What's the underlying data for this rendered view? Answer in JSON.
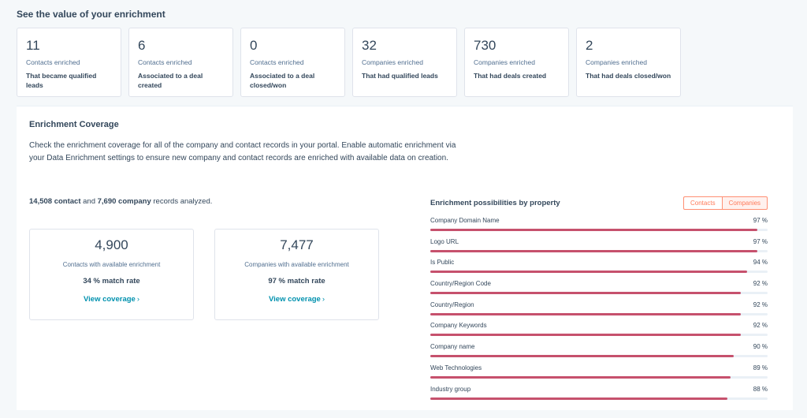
{
  "header": {
    "title": "See the value of your enrichment"
  },
  "stats": [
    {
      "value": "11",
      "label": "Contacts enriched",
      "sub": "That became qualified leads"
    },
    {
      "value": "6",
      "label": "Contacts enriched",
      "sub": "Associated to a deal created"
    },
    {
      "value": "0",
      "label": "Contacts enriched",
      "sub": "Associated to a deal closed/won"
    },
    {
      "value": "32",
      "label": "Companies enriched",
      "sub": "That had qualified leads"
    },
    {
      "value": "730",
      "label": "Companies enriched",
      "sub": "That had deals created"
    },
    {
      "value": "2",
      "label": "Companies enriched",
      "sub": "That had deals closed/won"
    }
  ],
  "coverage": {
    "title": "Enrichment Coverage",
    "description": "Check the enrichment coverage for all of the company and contact records in your portal. Enable automatic enrichment via your Data Enrichment settings to ensure new company and contact records are enriched with available data on creation.",
    "records": {
      "contacts": "14,508 contact",
      "and": " and ",
      "companies": "7,690 company",
      "suffix": " records analyzed."
    },
    "cards": [
      {
        "value": "4,900",
        "label": "Contacts with available enrichment",
        "rate": "34 % match rate",
        "link": "View coverage"
      },
      {
        "value": "7,477",
        "label": "Companies with available enrichment",
        "rate": "97 % match rate",
        "link": "View coverage"
      }
    ]
  },
  "properties": {
    "title": "Enrichment possibilities by property",
    "toggle": {
      "contacts": "Contacts",
      "companies": "Companies",
      "selected": "Companies"
    },
    "bar_color": "#c6516d",
    "items": [
      {
        "name": "Company Domain Name",
        "pct_label": "97 %",
        "value": 97
      },
      {
        "name": "Logo URL",
        "pct_label": "97 %",
        "value": 97
      },
      {
        "name": "Is Public",
        "pct_label": "94 %",
        "value": 94
      },
      {
        "name": "Country/Region Code",
        "pct_label": "92 %",
        "value": 92
      },
      {
        "name": "Country/Region",
        "pct_label": "92 %",
        "value": 92
      },
      {
        "name": "Company Keywords",
        "pct_label": "92 %",
        "value": 92
      },
      {
        "name": "Company name",
        "pct_label": "90 %",
        "value": 90
      },
      {
        "name": "Web Technologies",
        "pct_label": "89 %",
        "value": 89
      },
      {
        "name": "Industry group",
        "pct_label": "88 %",
        "value": 88
      }
    ]
  }
}
